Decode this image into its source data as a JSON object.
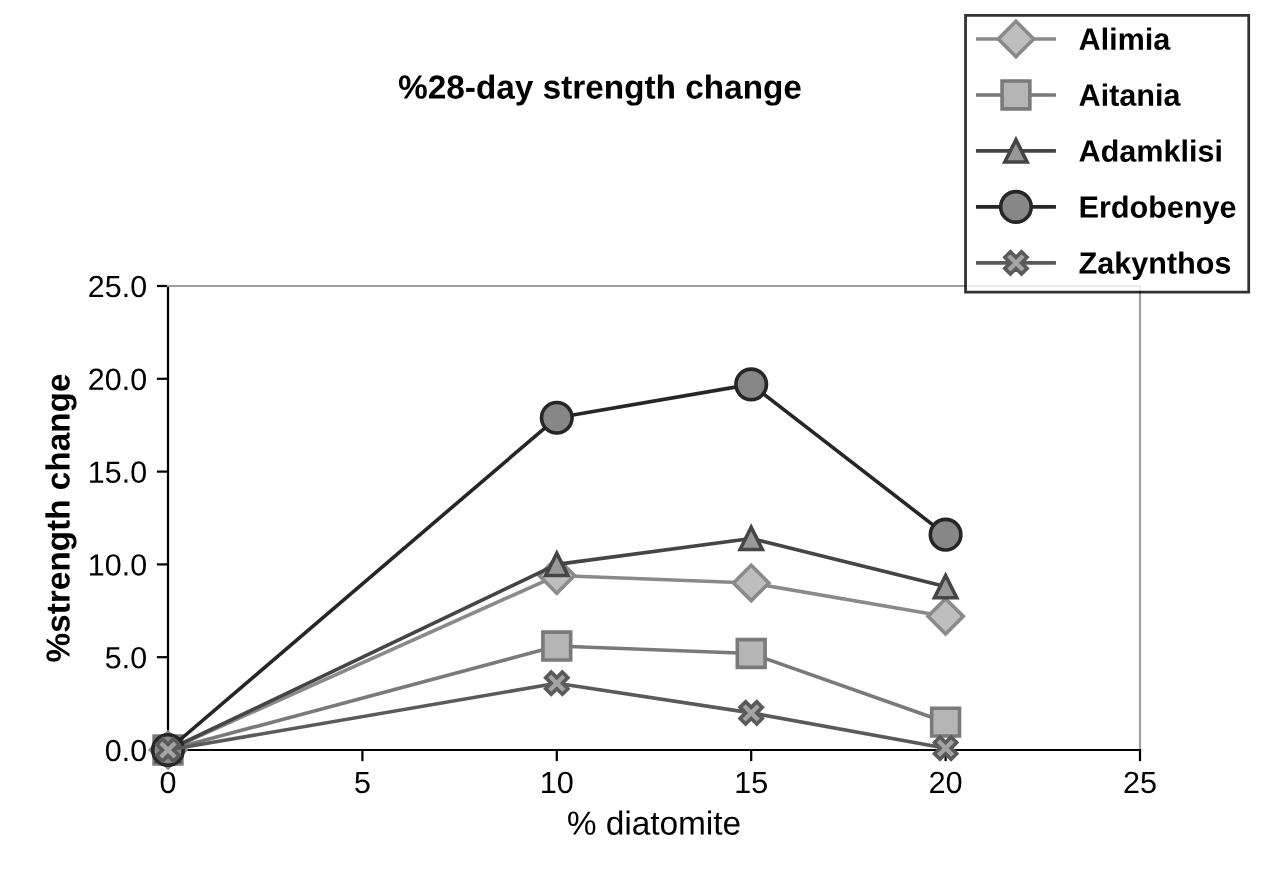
{
  "chart_data": {
    "type": "line",
    "title": "%28-day strength change",
    "xlabel": "% diatomite",
    "ylabel": "%strength change",
    "x": [
      0,
      10,
      15,
      20
    ],
    "xlim": [
      0,
      25
    ],
    "xticks": [
      0,
      5,
      10,
      15,
      20,
      25
    ],
    "ylim": [
      0,
      25
    ],
    "yticks": [
      {
        "value": 0,
        "label": "0.0"
      },
      {
        "value": 5,
        "label": "5.0"
      },
      {
        "value": 10,
        "label": "10.0"
      },
      {
        "value": 15,
        "label": "15.0"
      },
      {
        "value": 20,
        "label": "20.0"
      },
      {
        "value": 25,
        "label": "25.0"
      }
    ],
    "grid": false,
    "legend": "top right",
    "line_style": "solid",
    "series": [
      {
        "name": "Alimia",
        "color": "#8a8a8a",
        "marker": "diamond",
        "values": [
          0,
          9.4,
          9.0,
          7.2
        ]
      },
      {
        "name": "Aitania",
        "color": "#7a7a7a",
        "marker": "square",
        "values": [
          0,
          5.6,
          5.2,
          1.5
        ]
      },
      {
        "name": "Adamklisi",
        "color": "#454545",
        "marker": "triangle",
        "values": [
          0,
          10.0,
          11.4,
          8.8
        ]
      },
      {
        "name": "Erdobenye",
        "color": "#262626",
        "marker": "circle",
        "values": [
          0,
          17.9,
          19.7,
          11.6
        ]
      },
      {
        "name": "Zakynthos",
        "color": "#5a5a5a",
        "marker": "cross",
        "values": [
          0,
          3.6,
          2.0,
          0.1
        ]
      }
    ]
  }
}
